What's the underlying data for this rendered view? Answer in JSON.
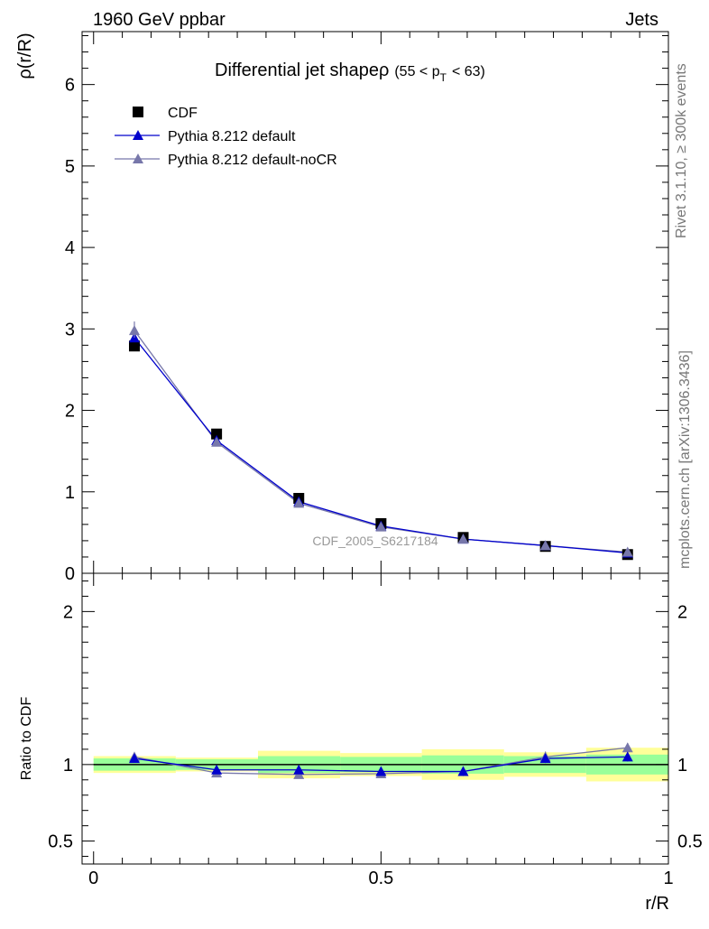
{
  "header": {
    "left_title": "1960 GeV ppbar",
    "right_title": "Jets"
  },
  "side_labels": {
    "rivet": "Rivet 3.1.10, ≥ 300k events",
    "mcplots": "mcplots.cern.ch [arXiv:1306.3436]"
  },
  "colors": {
    "cdf": "#000000",
    "pythia_default": "#0000cc",
    "pythia_nocr": "#7777aa",
    "band_inner": "#99ff99",
    "band_outer": "#ffff99"
  },
  "chart_data": [
    {
      "type": "line",
      "title": "Differential jet shapeρ (55 < p_T < 63)",
      "title_main": "Differential jet shapeρ",
      "title_cut_open": "(55 < p",
      "title_cut_sub": "T",
      "title_cut_close": "< 63)",
      "ylabel": "ρ(r/R)",
      "xlim": [
        -0.02,
        1.0
      ],
      "ylim": [
        0,
        6.65
      ],
      "yticks": [
        0,
        1,
        2,
        3,
        4,
        5,
        6
      ],
      "ytick_labels": [
        "0",
        "1",
        "2",
        "3",
        "4",
        "5",
        "6"
      ],
      "watermark": "CDF_2005_S6217184",
      "legend": [
        "CDF",
        "Pythia 8.212 default",
        "Pythia 8.212 default-noCR"
      ],
      "legend_position": "top-left",
      "x": [
        0.071,
        0.214,
        0.357,
        0.5,
        0.643,
        0.786,
        0.929
      ],
      "series": [
        {
          "name": "CDF",
          "marker": "square",
          "values": [
            2.79,
            1.71,
            0.92,
            0.61,
            0.44,
            0.33,
            0.23
          ]
        },
        {
          "name": "Pythia 8.212 default",
          "marker": "triangle",
          "values": [
            2.89,
            1.63,
            0.88,
            0.58,
            0.42,
            0.34,
            0.25
          ]
        },
        {
          "name": "Pythia 8.212 default-noCR",
          "marker": "triangle",
          "values": [
            2.98,
            1.61,
            0.86,
            0.57,
            0.42,
            0.34,
            0.26
          ]
        }
      ]
    },
    {
      "type": "line",
      "title": "",
      "xlabel": "r/R",
      "ylabel": "Ratio to CDF",
      "xlim": [
        -0.02,
        1.0
      ],
      "ylim": [
        0.35,
        2.25
      ],
      "xticks": [
        0,
        0.5,
        1
      ],
      "xtick_labels": [
        "0",
        "0.5",
        "1"
      ],
      "yticks": [
        0.5,
        1,
        2
      ],
      "ytick_labels": [
        "0.5",
        "1",
        "2"
      ],
      "bin_edges": [
        0.0,
        0.143,
        0.286,
        0.429,
        0.571,
        0.714,
        0.857,
        1.0
      ],
      "band_inner": [
        0.04,
        0.035,
        0.055,
        0.05,
        0.06,
        0.055,
        0.065
      ],
      "band_outer": [
        0.055,
        0.045,
        0.09,
        0.075,
        0.1,
        0.08,
        0.11
      ],
      "x": [
        0.071,
        0.214,
        0.357,
        0.5,
        0.643,
        0.786,
        0.929
      ],
      "series": [
        {
          "name": "Pythia 8.212 default",
          "values": [
            1.04,
            0.965,
            0.965,
            0.955,
            0.955,
            1.04,
            1.05
          ],
          "errors": [
            0.015,
            0.02,
            0.025,
            0.025,
            0.03,
            0.03,
            0.03
          ]
        },
        {
          "name": "Pythia 8.212 default-noCR",
          "values": [
            1.05,
            0.945,
            0.935,
            0.94,
            0.955,
            1.05,
            1.11
          ],
          "errors": [
            0.015,
            0.02,
            0.02,
            0.025,
            0.03,
            0.035,
            0.03
          ]
        }
      ]
    }
  ]
}
